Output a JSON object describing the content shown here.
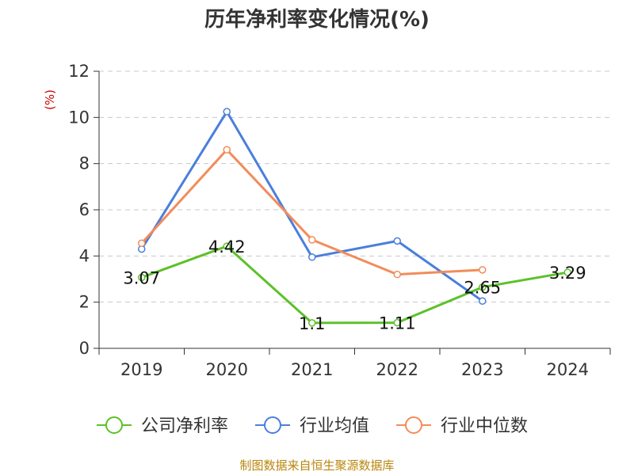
{
  "chart_data": {
    "type": "line",
    "title": "历年净利率变化情况(%)",
    "ylabel": "(%)",
    "xlabel": "",
    "categories": [
      "2019",
      "2020",
      "2021",
      "2022",
      "2023",
      "2024"
    ],
    "ylim": [
      0,
      12
    ],
    "yticks": [
      0,
      2,
      4,
      6,
      8,
      10,
      12
    ],
    "grid": true,
    "legend_position": "bottom",
    "series": [
      {
        "name": "公司净利率",
        "color": "#5cc12a",
        "values": [
          3.07,
          4.42,
          1.1,
          1.11,
          2.65,
          3.29
        ],
        "labels": [
          "3.07",
          "4.42",
          "1.1",
          "1.11",
          "2.65",
          "3.29"
        ]
      },
      {
        "name": "行业均值",
        "color": "#4a7fdc",
        "values": [
          4.3,
          10.25,
          3.95,
          4.65,
          2.05,
          null
        ]
      },
      {
        "name": "行业中位数",
        "color": "#f28c5a",
        "values": [
          4.55,
          8.6,
          4.7,
          3.2,
          3.4,
          null
        ]
      }
    ],
    "source": "制图数据来自恒生聚源数据库"
  }
}
